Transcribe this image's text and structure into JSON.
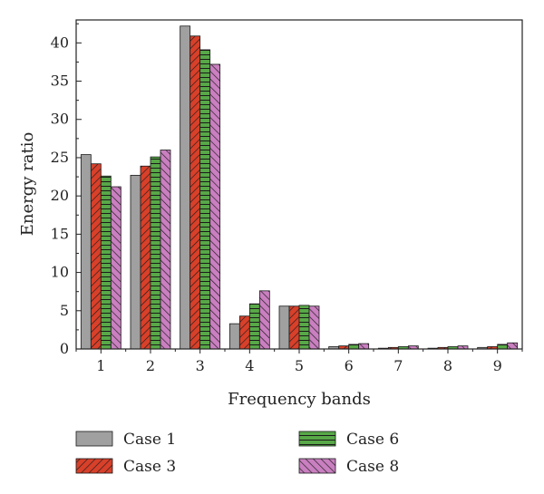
{
  "chart_data": {
    "type": "bar",
    "xlabel": "Frequency bands",
    "ylabel": "Energy ratio",
    "categories": [
      "1",
      "2",
      "3",
      "4",
      "5",
      "6",
      "7",
      "8",
      "9"
    ],
    "ylim": [
      0,
      43
    ],
    "yticks": [
      0,
      5,
      10,
      15,
      20,
      25,
      30,
      35,
      40
    ],
    "grid": false,
    "legend_position": "bottom",
    "series": [
      {
        "name": "Case 1",
        "color": "#a0a0a0",
        "pattern": "solid",
        "values": [
          25.4,
          22.7,
          42.2,
          3.3,
          5.6,
          0.3,
          0.1,
          0.1,
          0.2
        ]
      },
      {
        "name": "Case 3",
        "color": "#d8402a",
        "pattern": "diagonal-hatch",
        "values": [
          24.2,
          23.9,
          40.9,
          4.3,
          5.6,
          0.4,
          0.2,
          0.2,
          0.3
        ]
      },
      {
        "name": "Case 6",
        "color": "#58a848",
        "pattern": "horizontal-lines",
        "values": [
          22.6,
          25.1,
          39.1,
          5.9,
          5.7,
          0.6,
          0.3,
          0.3,
          0.6
        ]
      },
      {
        "name": "Case 8",
        "color": "#c97fc0",
        "pattern": "back-diagonal-hatch",
        "values": [
          21.2,
          26.0,
          37.2,
          7.6,
          5.6,
          0.7,
          0.4,
          0.4,
          0.8
        ]
      }
    ]
  }
}
